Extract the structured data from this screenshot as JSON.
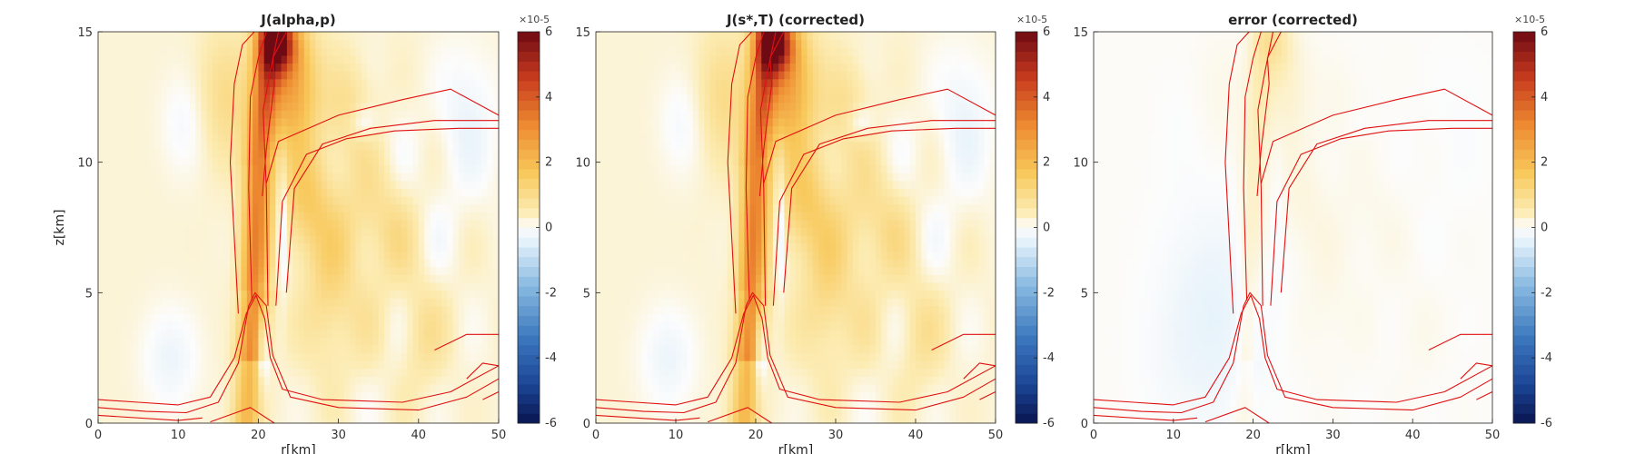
{
  "figure": {
    "panel_count": 3
  },
  "chart_data": [
    {
      "type": "heatmap",
      "title": "J(alpha,p)",
      "xlabel": "r[km]",
      "ylabel": "z[km]",
      "xlim": [
        0,
        50
      ],
      "ylim": [
        0,
        15
      ],
      "xticks": [
        "0",
        "10",
        "20",
        "30",
        "40",
        "50"
      ],
      "yticks": [
        "0",
        "5",
        "10",
        "15"
      ],
      "colorbar": {
        "ticks": [
          "-6",
          "-4",
          "-2",
          "0",
          "2",
          "4",
          "6"
        ],
        "exponent": "×10-5",
        "range": [
          -6,
          6
        ]
      },
      "field_scale": 1.0,
      "contour_color": "#e01010"
    },
    {
      "type": "heatmap",
      "title": "J(s*,T) (corrected)",
      "xlabel": "r[km]",
      "ylabel": "",
      "xlim": [
        0,
        50
      ],
      "ylim": [
        0,
        15
      ],
      "xticks": [
        "0",
        "10",
        "20",
        "30",
        "40",
        "50"
      ],
      "yticks": [
        "0",
        "5",
        "10",
        "15"
      ],
      "colorbar": {
        "ticks": [
          "-6",
          "-4",
          "-2",
          "0",
          "2",
          "4",
          "6"
        ],
        "exponent": "×10-5",
        "range": [
          -6,
          6
        ]
      },
      "field_scale": 1.0,
      "contour_color": "#e01010"
    },
    {
      "type": "heatmap",
      "title": "error (corrected)",
      "xlabel": "r[km]",
      "ylabel": "",
      "xlim": [
        0,
        50
      ],
      "ylim": [
        0,
        15
      ],
      "xticks": [
        "0",
        "10",
        "20",
        "30",
        "40",
        "50"
      ],
      "yticks": [
        "0",
        "5",
        "10",
        "15"
      ],
      "colorbar": {
        "ticks": [
          "-6",
          "-4",
          "-2",
          "0",
          "2",
          "4",
          "6"
        ],
        "exponent": "×10-5",
        "range": [
          -6,
          6
        ]
      },
      "field_scale": 0.12,
      "contour_color": "#e01010"
    }
  ]
}
